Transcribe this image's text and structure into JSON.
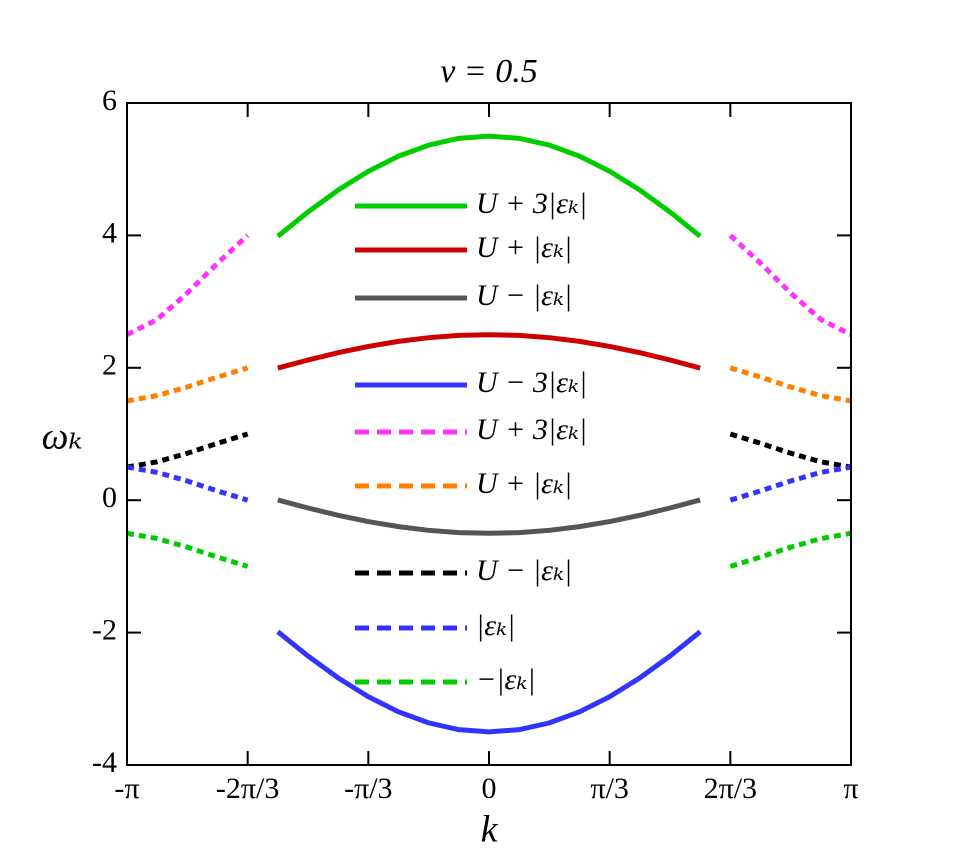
{
  "chart_data": {
    "type": "line",
    "title": "v = 0.5",
    "x_label": "k",
    "y_label": "ωₖ",
    "x": [
      -3.1416,
      -2.8798,
      -2.618,
      -2.3562,
      -2.0944,
      -1.8326,
      -1.5708,
      -1.309,
      -1.0472,
      -0.7854,
      -0.5236,
      -0.2618,
      0,
      0.2618,
      0.5236,
      0.7854,
      1.0472,
      1.309,
      1.5708,
      1.8326,
      2.0944,
      2.3562,
      2.618,
      2.8798,
      3.1416
    ],
    "series": [
      {
        "name": "U + 3|εₖ|",
        "color": "#00cc00",
        "linestyle": "solid",
        "values": [
          null,
          null,
          null,
          null,
          null,
          3.987,
          4.354,
          4.685,
          4.969,
          5.197,
          5.364,
          5.466,
          5.5,
          5.466,
          5.364,
          5.197,
          4.969,
          4.685,
          4.354,
          3.987,
          null,
          null,
          null,
          null,
          null
        ]
      },
      {
        "name": "U + |εₖ|",
        "color": "#cc0000",
        "linestyle": "solid",
        "values": [
          null,
          null,
          null,
          null,
          null,
          1.996,
          2.118,
          2.228,
          2.323,
          2.399,
          2.455,
          2.489,
          2.5,
          2.489,
          2.455,
          2.399,
          2.323,
          2.228,
          2.118,
          1.996,
          null,
          null,
          null,
          null,
          null
        ]
      },
      {
        "name": "U − |εₖ|",
        "color": "#555555",
        "linestyle": "solid",
        "values": [
          null,
          null,
          null,
          null,
          null,
          0.004,
          -0.118,
          -0.228,
          -0.323,
          -0.399,
          -0.455,
          -0.489,
          -0.5,
          -0.489,
          -0.455,
          -0.399,
          -0.323,
          -0.228,
          -0.118,
          0.004,
          null,
          null,
          null,
          null,
          null
        ]
      },
      {
        "name": "U − 3|εₖ|",
        "color": "#3333ff",
        "linestyle": "solid",
        "values": [
          null,
          null,
          null,
          null,
          null,
          -1.987,
          -2.354,
          -2.685,
          -2.969,
          -3.197,
          -3.364,
          -3.466,
          -3.5,
          -3.466,
          -3.364,
          -3.197,
          -2.969,
          -2.685,
          -2.354,
          -1.987,
          null,
          null,
          null,
          null,
          null
        ]
      },
      {
        "name": "U + 3|εₖ|",
        "color": "#ff33ff",
        "linestyle": "dashed",
        "values": [
          2.5,
          2.73,
          3.13,
          3.58,
          4.0,
          null,
          null,
          null,
          null,
          null,
          null,
          null,
          null,
          null,
          null,
          null,
          null,
          null,
          null,
          null,
          4.0,
          3.58,
          3.13,
          2.73,
          2.5
        ]
      },
      {
        "name": "U + |εₖ|",
        "color": "#ff8000",
        "linestyle": "dashed",
        "values": [
          1.5,
          1.58,
          1.71,
          1.86,
          2.0,
          null,
          null,
          null,
          null,
          null,
          null,
          null,
          null,
          null,
          null,
          null,
          null,
          null,
          null,
          null,
          2.0,
          1.86,
          1.71,
          1.58,
          1.5
        ]
      },
      {
        "name": "U − |εₖ|",
        "color": "#000000",
        "linestyle": "dashed",
        "values": [
          0.5,
          0.58,
          0.71,
          0.86,
          1.0,
          null,
          null,
          null,
          null,
          null,
          null,
          null,
          null,
          null,
          null,
          null,
          null,
          null,
          null,
          null,
          1.0,
          0.86,
          0.71,
          0.58,
          0.5
        ]
      },
      {
        "name": "|εₖ|",
        "color": "#3333ff",
        "linestyle": "dashed",
        "values": [
          0.5,
          0.42,
          0.29,
          0.14,
          0.0,
          null,
          null,
          null,
          null,
          null,
          null,
          null,
          null,
          null,
          null,
          null,
          null,
          null,
          null,
          null,
          0.0,
          0.14,
          0.29,
          0.42,
          0.5
        ]
      },
      {
        "name": "−|εₖ|",
        "color": "#00cc00",
        "linestyle": "dashed",
        "values": [
          -0.5,
          -0.58,
          -0.71,
          -0.86,
          -1.0,
          null,
          null,
          null,
          null,
          null,
          null,
          null,
          null,
          null,
          null,
          null,
          null,
          null,
          null,
          null,
          -1.0,
          -0.86,
          -0.71,
          -0.58,
          -0.5
        ]
      }
    ],
    "xlim": [
      -3.1416,
      3.1416
    ],
    "xticks": [
      {
        "value": -3.1416,
        "label": "-π"
      },
      {
        "value": -2.0944,
        "label": "-2π/3"
      },
      {
        "value": -1.0472,
        "label": "-π/3"
      },
      0,
      {
        "value": 1.0472,
        "label": "π/3"
      },
      {
        "value": 2.0944,
        "label": "2π/3"
      },
      {
        "value": 3.1416,
        "label": "π"
      }
    ],
    "ylim": [
      -4,
      6
    ],
    "yticks": [
      -4,
      -2,
      0,
      2,
      4,
      6
    ],
    "legend_loc": "center",
    "grid": false
  }
}
